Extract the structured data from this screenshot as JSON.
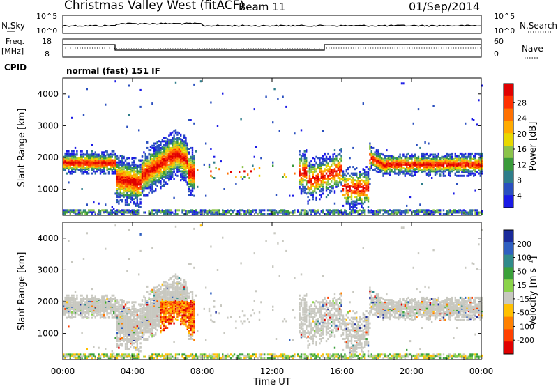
{
  "header": {
    "title": "Christmas Valley West (fitACF)",
    "beam": "Beam 11",
    "date": "01/Sep/2014"
  },
  "top_panels": {
    "nsky_label": "N.Sky",
    "nsky_ticks": [
      "10^5",
      "10^0"
    ],
    "nsearch_label": "N.Search",
    "freq_label": "Freq.",
    "freq_unit": "[MHz]",
    "freq_ticks": [
      "18",
      "8"
    ],
    "nave_label": "Nave",
    "nave_ticks": [
      "60",
      "0"
    ],
    "cpid_label": "CPID",
    "cpid_value": "normal (fast) 151 IF"
  },
  "chart_data": [
    {
      "type": "heatmap",
      "name": "power",
      "ylabel": "Slant Range [km]",
      "yticks": [
        1000,
        2000,
        3000,
        4000
      ],
      "ylim": [
        180,
        4500
      ],
      "xlim": [
        0,
        24
      ],
      "colorbar_label": "Power [dB]",
      "colorbar_ticks": [
        "28",
        "24",
        "20",
        "16",
        "12",
        "8",
        "4"
      ],
      "colorbar_colors": [
        "#e00000",
        "#ff3000",
        "#ff7000",
        "#ffaa00",
        "#e8d800",
        "#8bc34a",
        "#3a9a3a",
        "#2e7d8a",
        "#2a4fbf",
        "#1a1ae6"
      ]
    },
    {
      "type": "heatmap",
      "name": "velocity",
      "ylabel": "Slant Range [km]",
      "yticks": [
        1000,
        2000,
        3000,
        4000
      ],
      "ylim": [
        180,
        4500
      ],
      "xlim": [
        0,
        24
      ],
      "colorbar_label": "Velocity [m s⁻¹]",
      "colorbar_ticks": [
        "200",
        "100",
        "50",
        "15",
        "-15",
        "-50",
        "-100",
        "-200"
      ],
      "colorbar_colors": [
        "#1a2a9a",
        "#2e5fc0",
        "#2f8a8a",
        "#3aa03a",
        "#8bd34a",
        "#c8c8c0",
        "#ffc000",
        "#ff8000",
        "#ff4000",
        "#e00000"
      ]
    }
  ],
  "x_axis": {
    "ticks": [
      "00:00",
      "04:00",
      "08:00",
      "12:00",
      "16:00",
      "20:00",
      "00:00"
    ],
    "label": "Time UT"
  }
}
